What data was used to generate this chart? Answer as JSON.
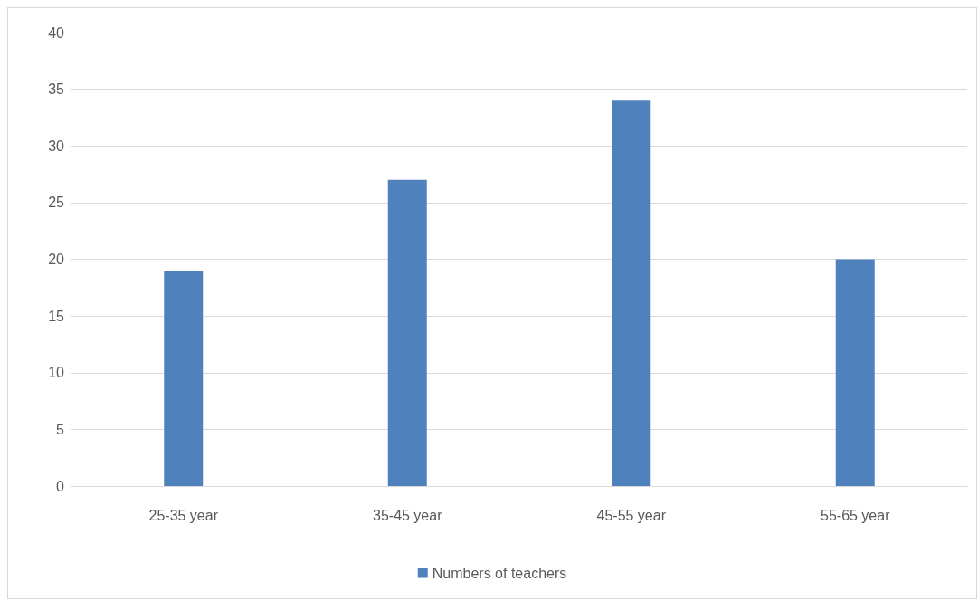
{
  "chart_data": {
    "type": "bar",
    "categories": [
      "25-35 year",
      "35-45 year",
      "45-55 year",
      "55-65 year"
    ],
    "series": [
      {
        "name": "Numbers of teachers",
        "color": "#4f81bd",
        "values": [
          19,
          27,
          34,
          20
        ]
      }
    ],
    "ylim": [
      0,
      40
    ],
    "yticks": [
      0,
      5,
      10,
      15,
      20,
      25,
      30,
      35,
      40
    ],
    "grid": "y",
    "legend": "bottom"
  }
}
